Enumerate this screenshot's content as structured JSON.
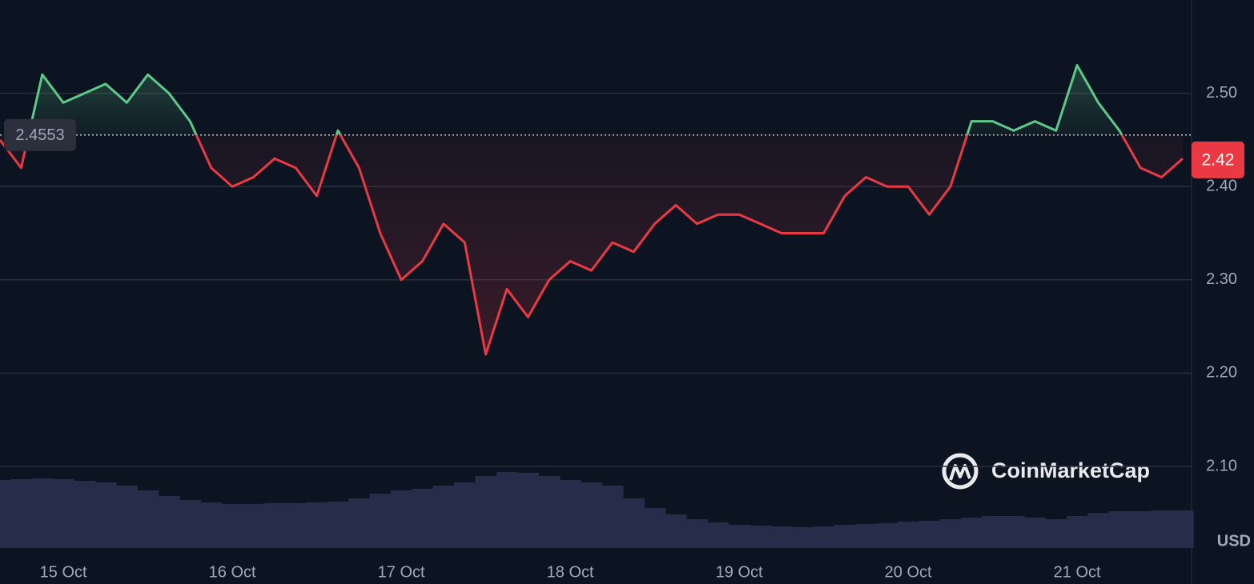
{
  "chart_data": {
    "type": "line",
    "categories": [
      null,
      null,
      null,
      "15 Oct",
      null,
      null,
      null,
      null,
      null,
      null,
      null,
      "16 Oct",
      null,
      null,
      null,
      null,
      null,
      null,
      null,
      "17 Oct",
      null,
      null,
      null,
      null,
      null,
      null,
      null,
      "18 Oct",
      null,
      null,
      null,
      null,
      null,
      null,
      null,
      "19 Oct",
      null,
      null,
      null,
      null,
      null,
      null,
      null,
      "20 Oct",
      null,
      null,
      null,
      null,
      null,
      null,
      null,
      "21 Oct",
      null,
      null,
      null,
      null,
      null
    ],
    "values": [
      2.45,
      2.42,
      2.52,
      2.49,
      2.5,
      2.51,
      2.49,
      2.52,
      2.5,
      2.47,
      2.42,
      2.4,
      2.41,
      2.43,
      2.42,
      2.39,
      2.46,
      2.42,
      2.35,
      2.3,
      2.32,
      2.36,
      2.34,
      2.22,
      2.29,
      2.26,
      2.3,
      2.32,
      2.31,
      2.34,
      2.33,
      2.36,
      2.38,
      2.36,
      2.37,
      2.37,
      2.36,
      2.35,
      2.35,
      2.35,
      2.39,
      2.41,
      2.4,
      2.4,
      2.37,
      2.4,
      2.47,
      2.47,
      2.46,
      2.47,
      2.46,
      2.53,
      2.49,
      2.46,
      2.42,
      2.41,
      2.43
    ],
    "volume": [
      85,
      86,
      87,
      86,
      84,
      82,
      78,
      72,
      65,
      60,
      57,
      55,
      55,
      56,
      56,
      57,
      58,
      62,
      68,
      72,
      74,
      78,
      82,
      90,
      95,
      94,
      90,
      85,
      82,
      78,
      62,
      50,
      42,
      36,
      32,
      29,
      28,
      27,
      26,
      27,
      29,
      30,
      31,
      33,
      34,
      36,
      38,
      40,
      40,
      38,
      36,
      40,
      44,
      46,
      46,
      47,
      47
    ],
    "ylim": [
      2.0125,
      2.6
    ],
    "yticks": [
      {
        "value": 2.1,
        "label": "2.10"
      },
      {
        "value": 2.2,
        "label": "2.20"
      },
      {
        "value": 2.3,
        "label": "2.30"
      },
      {
        "value": 2.4,
        "label": "2.40"
      },
      {
        "value": 2.5,
        "label": "2.50"
      }
    ],
    "grid": true,
    "reference_value": 2.4553,
    "last_price": 2.42,
    "currency": "USD",
    "watermark": "CoinMarketCap",
    "up_color": "#5dc887",
    "down_color": "#ea3943",
    "volume_color": "#252d4a"
  }
}
